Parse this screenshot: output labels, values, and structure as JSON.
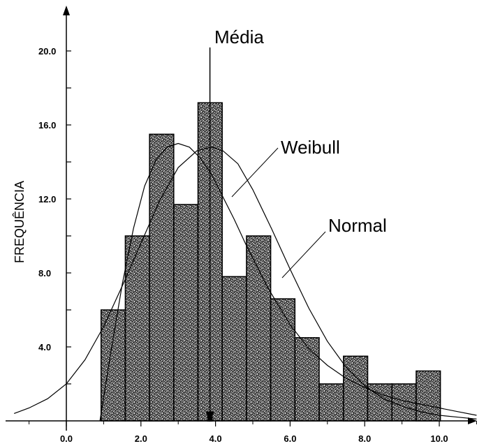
{
  "chart_data": {
    "type": "bar",
    "xlabel": "",
    "ylabel": "FREQUÊNCIA",
    "xlim": [
      -1.7,
      11.0
    ],
    "ylim": [
      0,
      21.5
    ],
    "x_ticks": [
      {
        "value": 0,
        "label": "0.0"
      },
      {
        "value": 2,
        "label": "2.0"
      },
      {
        "value": 4,
        "label": "4.0"
      },
      {
        "value": 6,
        "label": "6.0"
      },
      {
        "value": 8,
        "label": "8.0"
      },
      {
        "value": 10,
        "label": "10.0"
      }
    ],
    "y_ticks": [
      {
        "value": 4,
        "label": "4.0"
      },
      {
        "value": 8,
        "label": "8.0"
      },
      {
        "value": 12,
        "label": "12.0"
      },
      {
        "value": 16,
        "label": "16.0"
      },
      {
        "value": 20,
        "label": "20.0"
      }
    ],
    "histogram": {
      "bin_width": 0.65,
      "bin_starts": [
        0.93,
        1.58,
        2.23,
        2.88,
        3.53,
        4.18,
        4.83,
        5.48,
        6.13,
        6.78,
        7.43,
        8.08,
        8.73,
        9.38
      ],
      "values": [
        6.0,
        10.0,
        15.5,
        11.7,
        17.2,
        7.8,
        10.0,
        6.6,
        4.5,
        2.0,
        3.5,
        2.0,
        2.0,
        2.7
      ]
    },
    "curves": [
      {
        "name": "Weibull",
        "x": [
          0.9,
          1.2,
          1.5,
          1.8,
          2.1,
          2.4,
          2.7,
          3.0,
          3.3,
          3.6,
          3.9,
          4.2,
          4.5,
          4.8,
          5.1,
          5.4,
          5.7,
          6.0,
          6.5,
          7.0,
          7.5,
          8.0,
          8.5,
          9.0,
          9.5,
          10.0,
          10.5,
          11.0
        ],
        "y": [
          0.0,
          3.8,
          7.4,
          10.4,
          12.7,
          14.1,
          14.8,
          15.0,
          14.8,
          14.2,
          13.3,
          12.1,
          10.9,
          9.6,
          8.4,
          7.2,
          6.2,
          5.2,
          3.9,
          3.0,
          2.3,
          1.8,
          1.4,
          1.1,
          0.9,
          0.7,
          0.5,
          0.3
        ]
      },
      {
        "name": "Normal",
        "x": [
          -1.4,
          -1.0,
          -0.5,
          0.0,
          0.5,
          1.0,
          1.5,
          2.0,
          2.5,
          3.0,
          3.5,
          3.9,
          4.2,
          4.6,
          5.0,
          5.5,
          6.0,
          6.5,
          7.0,
          7.5,
          8.0,
          8.5,
          9.0,
          9.5,
          10.0,
          10.5,
          11.0
        ],
        "y": [
          0.4,
          0.7,
          1.2,
          2.0,
          3.3,
          5.1,
          7.3,
          9.6,
          11.9,
          13.7,
          14.6,
          14.8,
          14.6,
          13.9,
          12.5,
          10.4,
          8.2,
          6.1,
          4.3,
          2.9,
          1.9,
          1.2,
          0.8,
          0.5,
          0.3,
          0.2,
          0.1
        ]
      }
    ],
    "mean_line": {
      "x": 3.85,
      "label": "Média"
    },
    "annotations": [
      {
        "text": "Média",
        "target": "mean_line"
      },
      {
        "text": "Weibull",
        "target_x": 4.5,
        "target_y": 13.0
      },
      {
        "text": "Normal",
        "target_x": 6.7,
        "target_y": 7.6
      }
    ]
  }
}
